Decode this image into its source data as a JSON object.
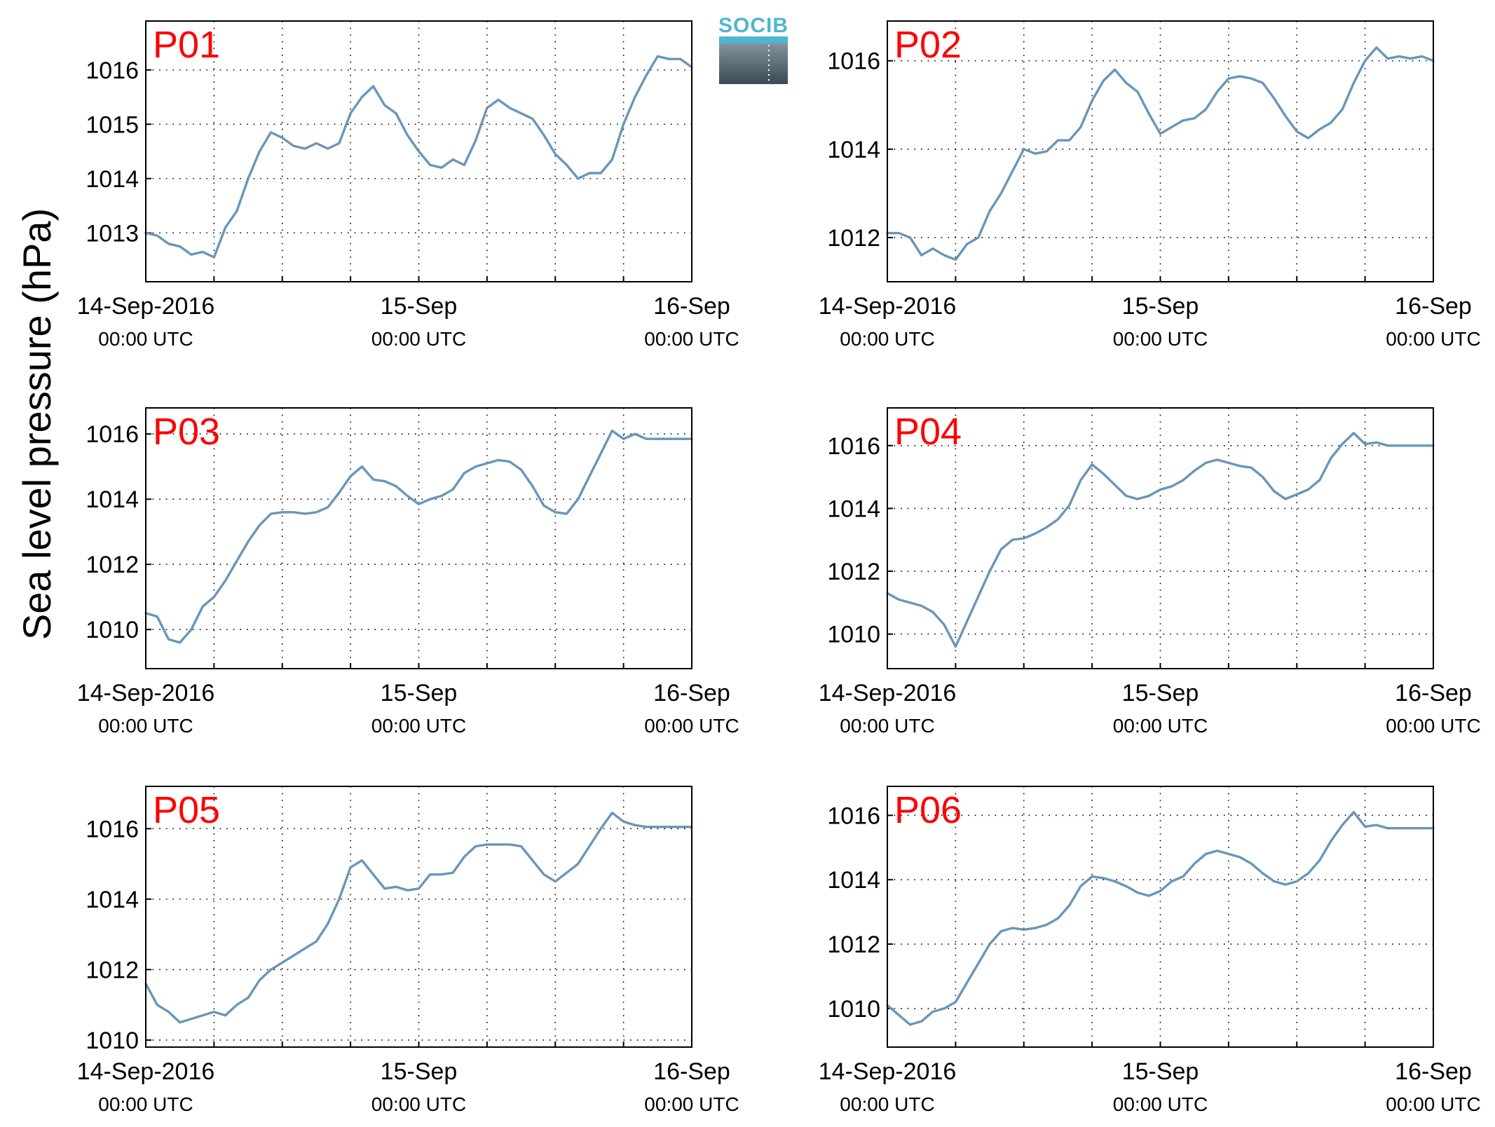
{
  "ylabel": "Sea level pressure (hPa)",
  "logo": {
    "text": "SOCIB"
  },
  "colors": {
    "series": "#6a95b8",
    "panel_label": "#ff0000",
    "logo_text": "#4fb6cf"
  },
  "x_tick_labels": [
    {
      "date": "14-Sep-2016",
      "time": "00:00 UTC"
    },
    {
      "date": "15-Sep",
      "time": "00:00 UTC"
    },
    {
      "date": "16-Sep",
      "time": "00:00 UTC"
    }
  ],
  "chart_data": [
    {
      "type": "line",
      "label": "P01",
      "x_range": [
        "2016-09-14T00:00",
        "2016-09-16T00:00"
      ],
      "ylim": [
        1012.1,
        1016.9
      ],
      "yticks": [
        1013,
        1014,
        1015,
        1016
      ],
      "grid": true,
      "hours": [
        0,
        1,
        2,
        3,
        4,
        5,
        6,
        7,
        8,
        9,
        10,
        11,
        12,
        13,
        14,
        15,
        16,
        17,
        18,
        19,
        20,
        21,
        22,
        23,
        24,
        25,
        26,
        27,
        28,
        29,
        30,
        31,
        32,
        33,
        34,
        35,
        36,
        37,
        38,
        39,
        40,
        41,
        42,
        43,
        44,
        45,
        46,
        47,
        48
      ],
      "values": [
        1013.0,
        1012.95,
        1012.8,
        1012.75,
        1012.6,
        1012.65,
        1012.55,
        1013.1,
        1013.4,
        1014.0,
        1014.5,
        1014.85,
        1014.75,
        1014.6,
        1014.55,
        1014.65,
        1014.55,
        1014.65,
        1015.2,
        1015.5,
        1015.7,
        1015.35,
        1015.2,
        1014.8,
        1014.5,
        1014.25,
        1014.2,
        1014.35,
        1014.25,
        1014.7,
        1015.3,
        1015.45,
        1015.3,
        1015.2,
        1015.1,
        1014.8,
        1014.45,
        1014.25,
        1014.0,
        1014.1,
        1014.1,
        1014.35,
        1015.0,
        1015.5,
        1015.9,
        1016.25,
        1016.2,
        1016.2,
        1016.05
      ]
    },
    {
      "type": "line",
      "label": "P02",
      "x_range": [
        "2016-09-14T00:00",
        "2016-09-16T00:00"
      ],
      "ylim": [
        1011.0,
        1016.9
      ],
      "yticks": [
        1012,
        1014,
        1016
      ],
      "grid": true,
      "hours": [
        0,
        1,
        2,
        3,
        4,
        5,
        6,
        7,
        8,
        9,
        10,
        11,
        12,
        13,
        14,
        15,
        16,
        17,
        18,
        19,
        20,
        21,
        22,
        23,
        24,
        25,
        26,
        27,
        28,
        29,
        30,
        31,
        32,
        33,
        34,
        35,
        36,
        37,
        38,
        39,
        40,
        41,
        42,
        43,
        44,
        45,
        46,
        47,
        48
      ],
      "values": [
        1012.1,
        1012.1,
        1012.0,
        1011.6,
        1011.75,
        1011.6,
        1011.5,
        1011.85,
        1012.0,
        1012.6,
        1013.0,
        1013.5,
        1014.0,
        1013.9,
        1013.95,
        1014.2,
        1014.2,
        1014.5,
        1015.1,
        1015.55,
        1015.8,
        1015.5,
        1015.3,
        1014.8,
        1014.35,
        1014.5,
        1014.65,
        1014.7,
        1014.9,
        1015.3,
        1015.6,
        1015.65,
        1015.6,
        1015.5,
        1015.15,
        1014.75,
        1014.4,
        1014.25,
        1014.45,
        1014.6,
        1014.9,
        1015.5,
        1016.0,
        1016.3,
        1016.05,
        1016.1,
        1016.05,
        1016.1,
        1016.0
      ]
    },
    {
      "type": "line",
      "label": "P03",
      "x_range": [
        "2016-09-14T00:00",
        "2016-09-16T00:00"
      ],
      "ylim": [
        1008.8,
        1016.8
      ],
      "yticks": [
        1010,
        1012,
        1014,
        1016
      ],
      "grid": true,
      "hours": [
        0,
        1,
        2,
        3,
        4,
        5,
        6,
        7,
        8,
        9,
        10,
        11,
        12,
        13,
        14,
        15,
        16,
        17,
        18,
        19,
        20,
        21,
        22,
        23,
        24,
        25,
        26,
        27,
        28,
        29,
        30,
        31,
        32,
        33,
        34,
        35,
        36,
        37,
        38,
        39,
        40,
        41,
        42,
        43,
        44,
        45,
        46,
        47,
        48
      ],
      "values": [
        1010.5,
        1010.4,
        1009.7,
        1009.6,
        1010.0,
        1010.7,
        1011.0,
        1011.5,
        1012.1,
        1012.7,
        1013.2,
        1013.55,
        1013.6,
        1013.6,
        1013.55,
        1013.6,
        1013.75,
        1014.2,
        1014.7,
        1015.0,
        1014.6,
        1014.55,
        1014.4,
        1014.1,
        1013.85,
        1014.0,
        1014.1,
        1014.3,
        1014.8,
        1015.0,
        1015.1,
        1015.2,
        1015.15,
        1014.9,
        1014.4,
        1013.8,
        1013.6,
        1013.55,
        1014.0,
        1014.7,
        1015.4,
        1016.1,
        1015.85,
        1016.0,
        1015.85,
        1015.85,
        1015.85,
        1015.85,
        1015.85
      ]
    },
    {
      "type": "line",
      "label": "P04",
      "x_range": [
        "2016-09-14T00:00",
        "2016-09-16T00:00"
      ],
      "ylim": [
        1008.9,
        1017.2
      ],
      "yticks": [
        1010,
        1012,
        1014,
        1016
      ],
      "grid": true,
      "hours": [
        0,
        1,
        2,
        3,
        4,
        5,
        6,
        7,
        8,
        9,
        10,
        11,
        12,
        13,
        14,
        15,
        16,
        17,
        18,
        19,
        20,
        21,
        22,
        23,
        24,
        25,
        26,
        27,
        28,
        29,
        30,
        31,
        32,
        33,
        34,
        35,
        36,
        37,
        38,
        39,
        40,
        41,
        42,
        43,
        44,
        45,
        46,
        47,
        48
      ],
      "values": [
        1011.3,
        1011.1,
        1011.0,
        1010.9,
        1010.7,
        1010.3,
        1009.6,
        1010.4,
        1011.2,
        1012.0,
        1012.7,
        1013.0,
        1013.05,
        1013.2,
        1013.4,
        1013.65,
        1014.1,
        1014.9,
        1015.4,
        1015.1,
        1014.75,
        1014.4,
        1014.3,
        1014.4,
        1014.6,
        1014.7,
        1014.9,
        1015.2,
        1015.45,
        1015.55,
        1015.45,
        1015.35,
        1015.3,
        1015.0,
        1014.55,
        1014.3,
        1014.45,
        1014.6,
        1014.9,
        1015.6,
        1016.05,
        1016.4,
        1016.05,
        1016.1,
        1016.0,
        1016.0,
        1016.0,
        1016.0,
        1016.0
      ]
    },
    {
      "type": "line",
      "label": "P05",
      "x_range": [
        "2016-09-14T00:00",
        "2016-09-16T00:00"
      ],
      "ylim": [
        1009.8,
        1017.2
      ],
      "yticks": [
        1010,
        1012,
        1014,
        1016
      ],
      "grid": true,
      "hours": [
        0,
        1,
        2,
        3,
        4,
        5,
        6,
        7,
        8,
        9,
        10,
        11,
        12,
        13,
        14,
        15,
        16,
        17,
        18,
        19,
        20,
        21,
        22,
        23,
        24,
        25,
        26,
        27,
        28,
        29,
        30,
        31,
        32,
        33,
        34,
        35,
        36,
        37,
        38,
        39,
        40,
        41,
        42,
        43,
        44,
        45,
        46,
        47,
        48
      ],
      "values": [
        1011.6,
        1011.0,
        1010.8,
        1010.5,
        1010.6,
        1010.7,
        1010.8,
        1010.7,
        1011.0,
        1011.2,
        1011.7,
        1012.0,
        1012.2,
        1012.4,
        1012.6,
        1012.8,
        1013.3,
        1014.0,
        1014.9,
        1015.1,
        1014.7,
        1014.3,
        1014.35,
        1014.25,
        1014.3,
        1014.7,
        1014.7,
        1014.75,
        1015.2,
        1015.5,
        1015.55,
        1015.55,
        1015.55,
        1015.5,
        1015.1,
        1014.7,
        1014.5,
        1014.75,
        1015.0,
        1015.5,
        1016.0,
        1016.45,
        1016.2,
        1016.1,
        1016.05,
        1016.05,
        1016.05,
        1016.05,
        1016.05
      ]
    },
    {
      "type": "line",
      "label": "P06",
      "x_range": [
        "2016-09-14T00:00",
        "2016-09-16T00:00"
      ],
      "ylim": [
        1008.8,
        1016.9
      ],
      "yticks": [
        1010,
        1012,
        1014,
        1016
      ],
      "grid": true,
      "hours": [
        0,
        1,
        2,
        3,
        4,
        5,
        6,
        7,
        8,
        9,
        10,
        11,
        12,
        13,
        14,
        15,
        16,
        17,
        18,
        19,
        20,
        21,
        22,
        23,
        24,
        25,
        26,
        27,
        28,
        29,
        30,
        31,
        32,
        33,
        34,
        35,
        36,
        37,
        38,
        39,
        40,
        41,
        42,
        43,
        44,
        45,
        46,
        47,
        48
      ],
      "values": [
        1010.1,
        1009.8,
        1009.5,
        1009.6,
        1009.9,
        1010.0,
        1010.2,
        1010.8,
        1011.4,
        1012.0,
        1012.4,
        1012.5,
        1012.45,
        1012.5,
        1012.6,
        1012.8,
        1013.2,
        1013.8,
        1014.1,
        1014.05,
        1013.95,
        1013.8,
        1013.6,
        1013.5,
        1013.65,
        1013.95,
        1014.1,
        1014.5,
        1014.8,
        1014.9,
        1014.8,
        1014.7,
        1014.5,
        1014.2,
        1013.95,
        1013.85,
        1013.95,
        1014.2,
        1014.6,
        1015.2,
        1015.7,
        1016.1,
        1015.65,
        1015.7,
        1015.6,
        1015.6,
        1015.6,
        1015.6,
        1015.6
      ]
    }
  ]
}
